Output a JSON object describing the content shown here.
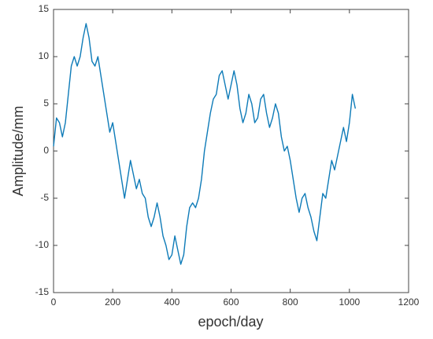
{
  "chart_data": {
    "type": "line",
    "xlabel": "epoch/day",
    "ylabel": "Amplitude/mm",
    "x": [
      0,
      10,
      20,
      30,
      40,
      50,
      60,
      70,
      80,
      90,
      100,
      110,
      120,
      130,
      140,
      150,
      160,
      170,
      180,
      190,
      200,
      210,
      220,
      230,
      240,
      250,
      260,
      270,
      280,
      290,
      300,
      310,
      320,
      330,
      340,
      350,
      360,
      370,
      380,
      390,
      400,
      410,
      420,
      430,
      440,
      450,
      460,
      470,
      480,
      490,
      500,
      510,
      520,
      530,
      540,
      550,
      560,
      570,
      580,
      590,
      600,
      610,
      620,
      630,
      640,
      650,
      660,
      670,
      680,
      690,
      700,
      710,
      720,
      730,
      740,
      750,
      760,
      770,
      780,
      790,
      800,
      810,
      820,
      830,
      840,
      850,
      860,
      870,
      880,
      890,
      900,
      910,
      920,
      930,
      940,
      950,
      960,
      970,
      980,
      990,
      1000,
      1010,
      1020
    ],
    "values": [
      0.5,
      3.5,
      3,
      1.5,
      3,
      6,
      9,
      10,
      9,
      10,
      12,
      13.5,
      12,
      9.5,
      9,
      10,
      8,
      6,
      4,
      2,
      3,
      1,
      -1,
      -3,
      -5,
      -3,
      -1,
      -2.5,
      -4,
      -3,
      -4.5,
      -5,
      -7,
      -8,
      -7,
      -5.5,
      -7,
      -9,
      -10,
      -11.5,
      -11,
      -9,
      -10.5,
      -12,
      -11,
      -8,
      -6,
      -5.5,
      -6,
      -5,
      -3,
      0,
      2,
      4,
      5.5,
      6,
      8,
      8.5,
      7,
      5.5,
      7,
      8.5,
      7,
      4.5,
      3,
      4,
      6,
      5,
      3,
      3.5,
      5.5,
      6,
      4,
      2.5,
      3.5,
      5,
      4,
      1.5,
      0,
      0.5,
      -1,
      -3,
      -5,
      -6.5,
      -5,
      -4.5,
      -6,
      -7,
      -8.5,
      -9.5,
      -7,
      -4.5,
      -5,
      -3,
      -1,
      -2,
      -0.5,
      1,
      2.5,
      1,
      3,
      6,
      4.5
    ],
    "color": "#0e7bb8",
    "xlim": [
      0,
      1200
    ],
    "xticks": [
      0,
      200,
      400,
      600,
      800,
      1000,
      1200
    ],
    "ylim": [
      -15,
      15
    ],
    "yticks": [
      -15,
      -10,
      -5,
      0,
      5,
      10,
      15
    ]
  }
}
